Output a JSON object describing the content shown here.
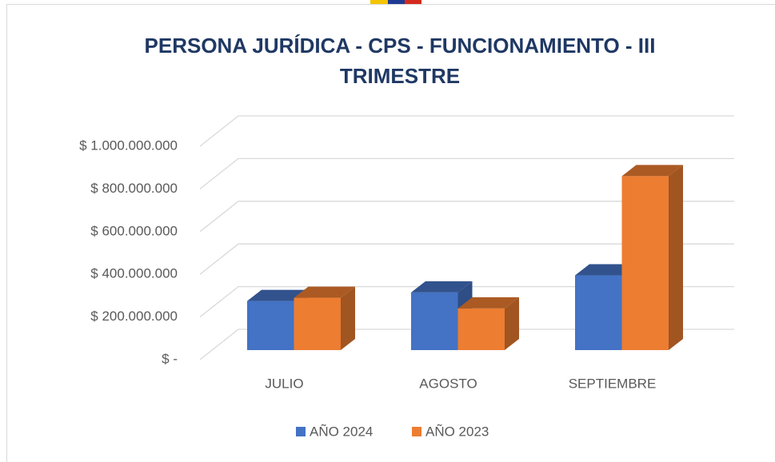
{
  "chart_data": {
    "type": "bar3d",
    "title": "PERSONA JURÍDICA - CPS - FUNCIONAMIENTO - III TRIMESTRE",
    "categories": [
      "JULIO",
      "AGOSTO",
      "SEPTIEMBRE"
    ],
    "series": [
      {
        "name": "AÑO 2024",
        "color": "#4472c4",
        "values": [
          230000000,
          270000000,
          350000000
        ]
      },
      {
        "name": "AÑO 2023",
        "color": "#ed7d31",
        "values": [
          245000000,
          195000000,
          815000000
        ]
      }
    ],
    "ylim": [
      0,
      1000000000
    ],
    "yticks": [
      {
        "value": 0,
        "label": "$ -"
      },
      {
        "value": 200000000,
        "label": "$ 200.000.000"
      },
      {
        "value": 400000000,
        "label": "$ 400.000.000"
      },
      {
        "value": 600000000,
        "label": "$ 600.000.000"
      },
      {
        "value": 800000000,
        "label": "$ 800.000.000"
      },
      {
        "value": 1000000000,
        "label": "$ 1.000.000.000"
      }
    ],
    "grid": true,
    "legend": "bottom"
  }
}
